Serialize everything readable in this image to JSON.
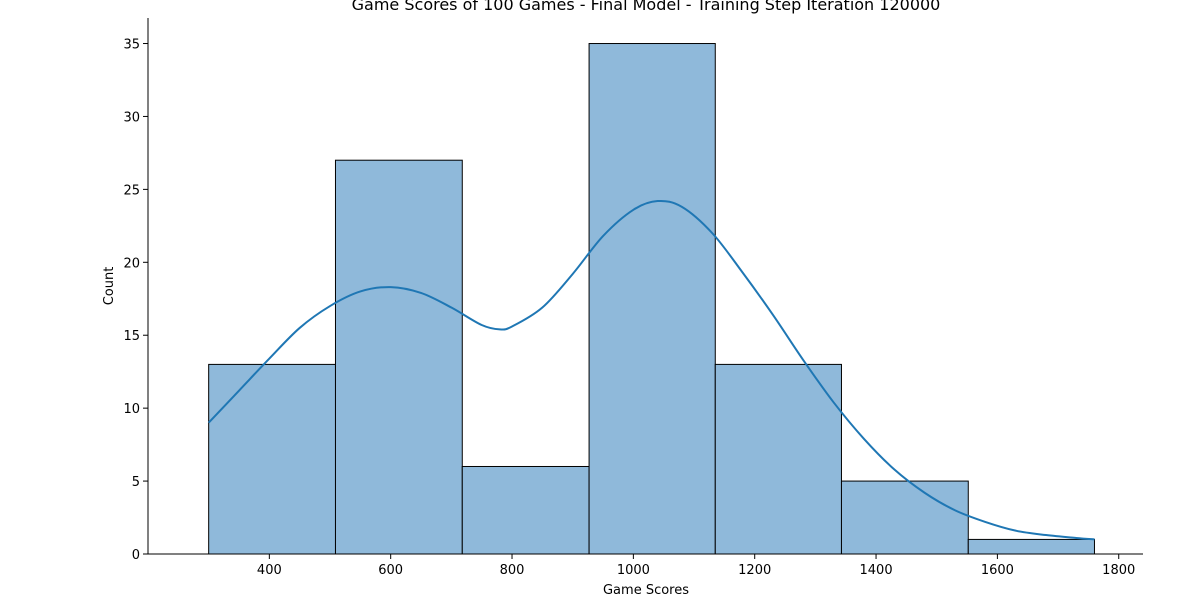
{
  "chart_data": {
    "type": "bar",
    "title": "Game Scores of 100 Games - Final Model - Training Step Iteration 120000",
    "xlabel": "Game Scores",
    "ylabel": "Count",
    "xlim": [
      200,
      1840
    ],
    "ylim": [
      0,
      36.75
    ],
    "xticks": [
      400,
      600,
      800,
      1000,
      1200,
      1400,
      1600,
      1800
    ],
    "yticks": [
      0,
      5,
      10,
      15,
      20,
      25,
      30,
      35
    ],
    "bins": [
      {
        "x0": 300,
        "x1": 509,
        "count": 13
      },
      {
        "x0": 509,
        "x1": 718,
        "count": 27
      },
      {
        "x0": 718,
        "x1": 927,
        "count": 6
      },
      {
        "x0": 927,
        "x1": 1135,
        "count": 35
      },
      {
        "x0": 1135,
        "x1": 1343,
        "count": 13
      },
      {
        "x0": 1343,
        "x1": 1552,
        "count": 5
      },
      {
        "x0": 1552,
        "x1": 1760,
        "count": 1
      }
    ],
    "kde": {
      "x": [
        300,
        350,
        400,
        450,
        500,
        550,
        600,
        650,
        700,
        750,
        780,
        800,
        850,
        900,
        950,
        1000,
        1040,
        1080,
        1130,
        1180,
        1230,
        1280,
        1330,
        1380,
        1430,
        1480,
        1530,
        1580,
        1630,
        1680,
        1730,
        1760
      ],
      "y": [
        9.0,
        11.2,
        13.4,
        15.5,
        17.0,
        18.0,
        18.3,
        17.9,
        16.9,
        15.7,
        15.4,
        15.6,
        16.9,
        19.2,
        21.8,
        23.6,
        24.2,
        23.8,
        22.0,
        19.3,
        16.4,
        13.3,
        10.4,
        7.9,
        5.8,
        4.2,
        3.0,
        2.2,
        1.6,
        1.3,
        1.1,
        1.0
      ]
    },
    "grid": false,
    "legend": "none",
    "bar_color": "#8fb9da",
    "bar_edge": "#000000",
    "line_color": "#1f77b4"
  }
}
